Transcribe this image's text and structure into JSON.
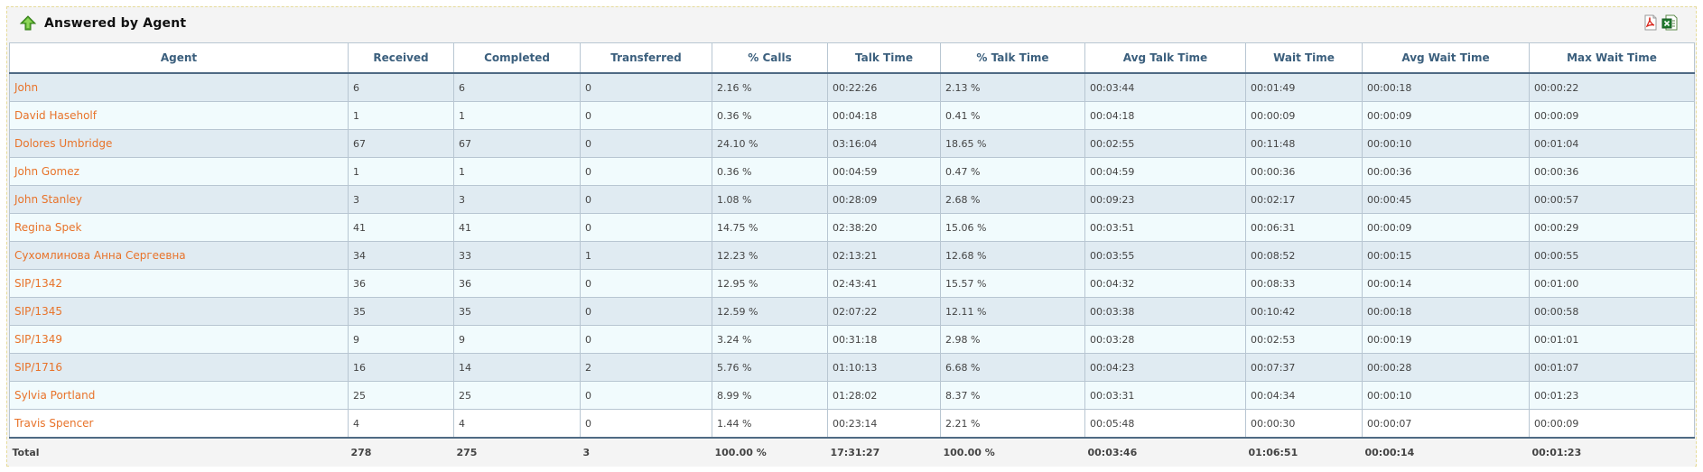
{
  "panel": {
    "title": "Answered by Agent",
    "icons": {
      "collapse": "green-up-arrow-icon",
      "pdf": "pdf-export-icon",
      "excel": "excel-export-icon"
    }
  },
  "columns": [
    "Agent",
    "Received",
    "Completed",
    "Transferred",
    "% Calls",
    "Talk Time",
    "% Talk Time",
    "Avg Talk Time",
    "Wait Time",
    "Avg Wait Time",
    "Max Wait Time"
  ],
  "rows": [
    [
      "John",
      "6",
      "6",
      "0",
      "2.16 %",
      "00:22:26",
      "2.13 %",
      "00:03:44",
      "00:01:49",
      "00:00:18",
      "00:00:22"
    ],
    [
      "David Haseholf",
      "1",
      "1",
      "0",
      "0.36 %",
      "00:04:18",
      "0.41 %",
      "00:04:18",
      "00:00:09",
      "00:00:09",
      "00:00:09"
    ],
    [
      "Dolores Umbridge",
      "67",
      "67",
      "0",
      "24.10 %",
      "03:16:04",
      "18.65 %",
      "00:02:55",
      "00:11:48",
      "00:00:10",
      "00:01:04"
    ],
    [
      "John Gomez",
      "1",
      "1",
      "0",
      "0.36 %",
      "00:04:59",
      "0.47 %",
      "00:04:59",
      "00:00:36",
      "00:00:36",
      "00:00:36"
    ],
    [
      "John Stanley",
      "3",
      "3",
      "0",
      "1.08 %",
      "00:28:09",
      "2.68 %",
      "00:09:23",
      "00:02:17",
      "00:00:45",
      "00:00:57"
    ],
    [
      "Regina Spek",
      "41",
      "41",
      "0",
      "14.75 %",
      "02:38:20",
      "15.06 %",
      "00:03:51",
      "00:06:31",
      "00:00:09",
      "00:00:29"
    ],
    [
      "Сухомлинова Анна Сергеевна",
      "34",
      "33",
      "1",
      "12.23 %",
      "02:13:21",
      "12.68 %",
      "00:03:55",
      "00:08:52",
      "00:00:15",
      "00:00:55"
    ],
    [
      "SIP/1342",
      "36",
      "36",
      "0",
      "12.95 %",
      "02:43:41",
      "15.57 %",
      "00:04:32",
      "00:08:33",
      "00:00:14",
      "00:01:00"
    ],
    [
      "SIP/1345",
      "35",
      "35",
      "0",
      "12.59 %",
      "02:07:22",
      "12.11 %",
      "00:03:38",
      "00:10:42",
      "00:00:18",
      "00:00:58"
    ],
    [
      "SIP/1349",
      "9",
      "9",
      "0",
      "3.24 %",
      "00:31:18",
      "2.98 %",
      "00:03:28",
      "00:02:53",
      "00:00:19",
      "00:01:01"
    ],
    [
      "SIP/1716",
      "16",
      "14",
      "2",
      "5.76 %",
      "01:10:13",
      "6.68 %",
      "00:04:23",
      "00:07:37",
      "00:00:28",
      "00:01:07"
    ],
    [
      "Sylvia Portland",
      "25",
      "25",
      "0",
      "8.99 %",
      "01:28:02",
      "8.37 %",
      "00:03:31",
      "00:04:34",
      "00:00:10",
      "00:01:23"
    ],
    [
      "Travis Spencer",
      "4",
      "4",
      "0",
      "1.44 %",
      "00:23:14",
      "2.21 %",
      "00:05:48",
      "00:00:30",
      "00:00:07",
      "00:00:09"
    ]
  ],
  "totals": [
    "Total",
    "278",
    "275",
    "3",
    "100.00 %",
    "17:31:27",
    "100.00 %",
    "00:03:46",
    "01:06:51",
    "00:00:14",
    "00:01:23"
  ],
  "colors": {
    "agent_link": "#e8732a",
    "header_text": "#3b5f7d",
    "row_odd": "#e0ebf2",
    "row_even": "#f1fbfd"
  }
}
